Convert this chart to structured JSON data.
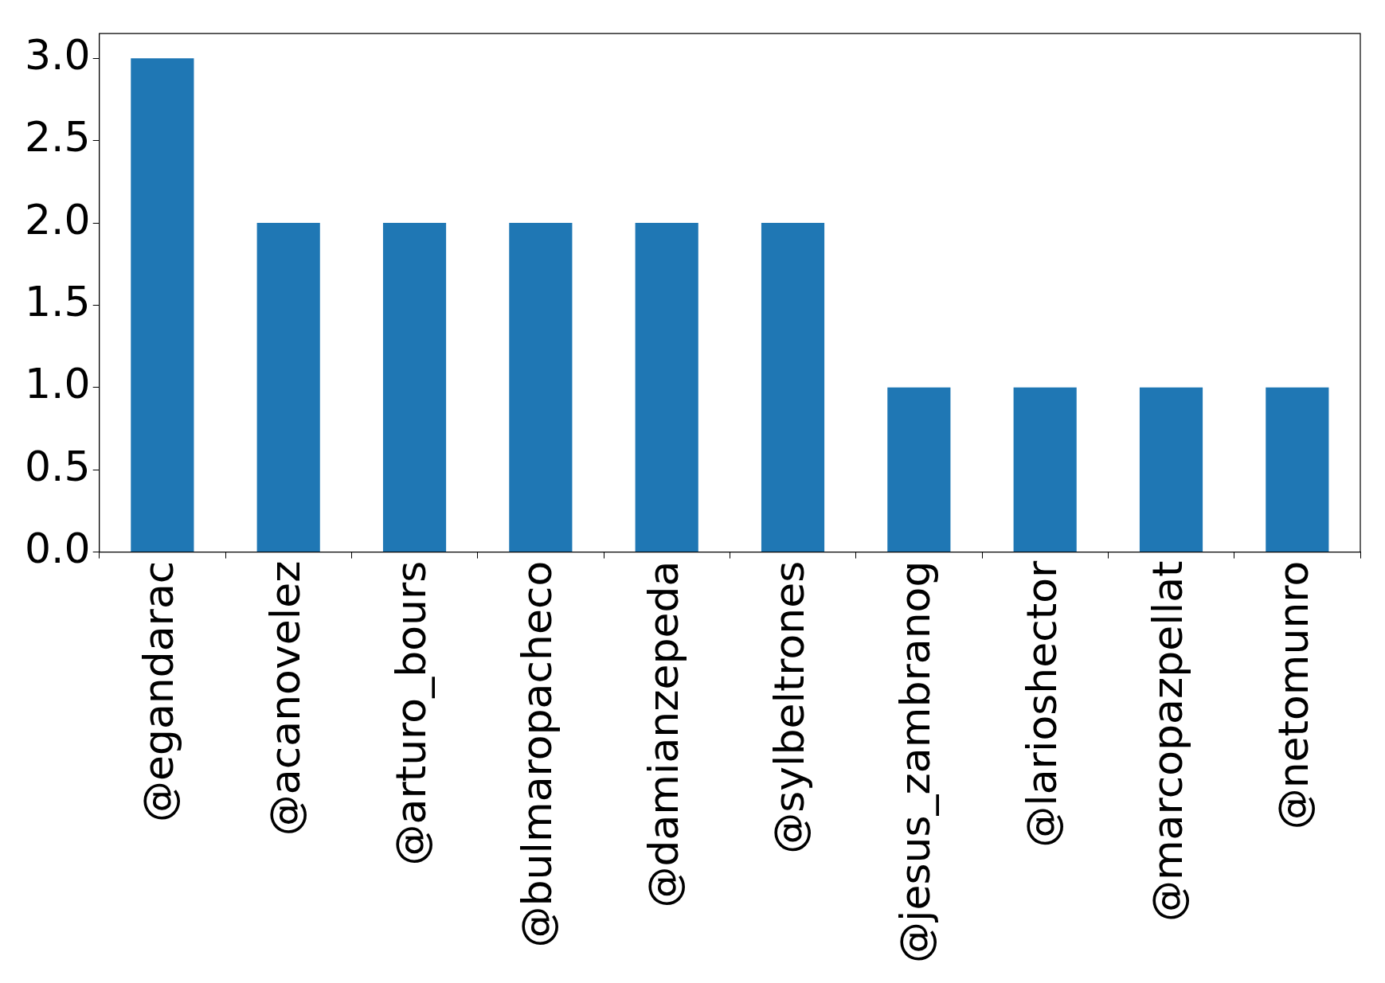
{
  "chart_data": {
    "type": "bar",
    "categories": [
      "@egandarac",
      "@acanovelez",
      "@arturo_bours",
      "@bulmaropacheco",
      "@damianzepeda",
      "@sylbeltrones",
      "@jesus_zambranog",
      "@larioshector",
      "@marcopazpellat",
      "@netomunro"
    ],
    "values": [
      3,
      2,
      2,
      2,
      2,
      2,
      1,
      1,
      1,
      1
    ],
    "color": "#1f77b4",
    "ylim": [
      0,
      3.15
    ],
    "yticks": [
      {
        "value": 0,
        "label": "0.0"
      },
      {
        "value": 0.5,
        "label": "0.5"
      },
      {
        "value": 1,
        "label": "1.0"
      },
      {
        "value": 1.5,
        "label": "1.5"
      },
      {
        "value": 2,
        "label": "2.0"
      },
      {
        "value": 2.5,
        "label": "2.5"
      },
      {
        "value": 3,
        "label": "3.0"
      }
    ]
  }
}
